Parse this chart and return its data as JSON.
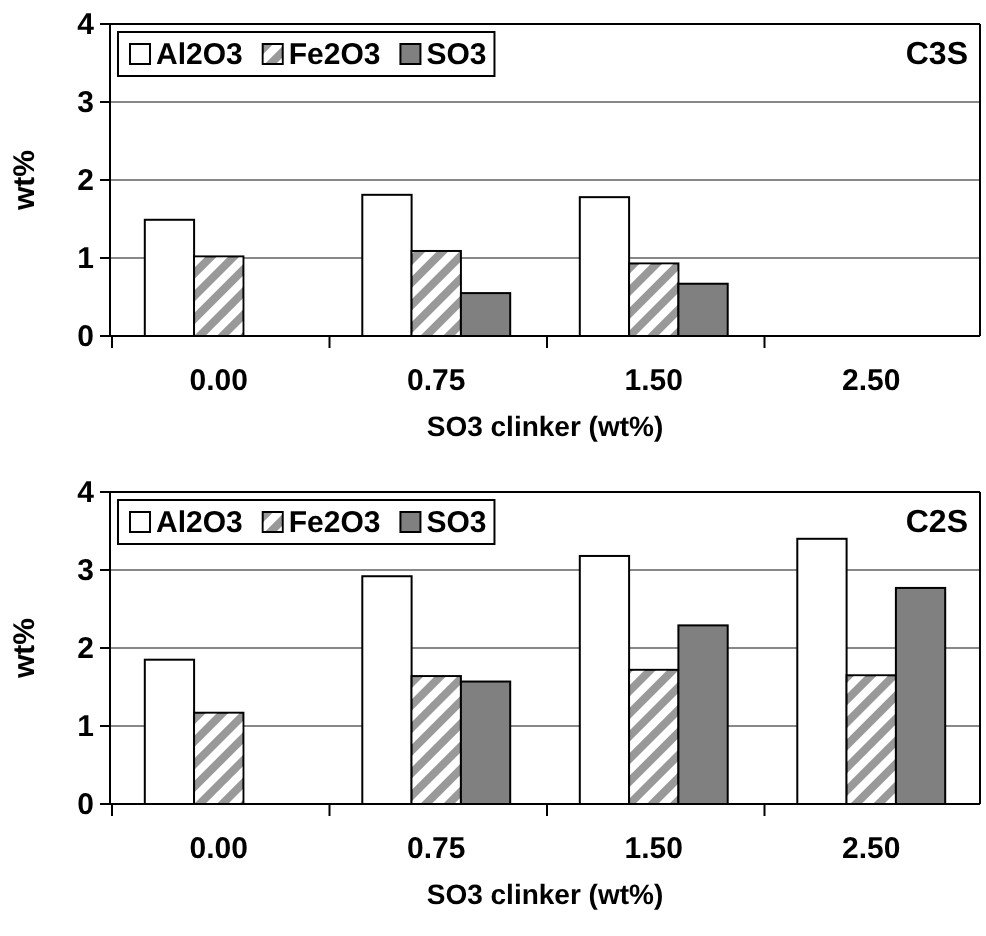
{
  "chart_data": [
    {
      "type": "bar",
      "categories": [
        "0.00",
        "0.75",
        "1.50",
        "2.50"
      ],
      "xlabel": "SO3 clinker (wt%)",
      "ylabel": "wt%",
      "annotations": [
        "C3S"
      ],
      "ylim": [
        0,
        4
      ],
      "yticks": [
        0,
        1,
        2,
        3,
        4
      ],
      "grid": "y",
      "legend": "top left",
      "series": [
        {
          "name": "Al2O3",
          "color": "#ffffff",
          "values": [
            1.49,
            1.81,
            1.78,
            null
          ]
        },
        {
          "name": "Fe2O3",
          "color": "#999999",
          "values": [
            1.02,
            1.09,
            0.93,
            null
          ]
        },
        {
          "name": "SO3",
          "color": "#808080",
          "values": [
            null,
            0.55,
            0.67,
            null
          ]
        }
      ]
    },
    {
      "type": "bar",
      "categories": [
        "0.00",
        "0.75",
        "1.50",
        "2.50"
      ],
      "xlabel": "SO3 clinker (wt%)",
      "ylabel": "wt%",
      "annotations": [
        "C2S"
      ],
      "ylim": [
        0,
        4
      ],
      "yticks": [
        0,
        1,
        2,
        3,
        4
      ],
      "grid": "y",
      "legend": "top left",
      "series": [
        {
          "name": "Al2O3",
          "color": "#ffffff",
          "values": [
            1.85,
            2.92,
            3.18,
            3.4
          ]
        },
        {
          "name": "Fe2O3",
          "color": "#999999",
          "values": [
            1.17,
            1.64,
            1.72,
            1.65
          ]
        },
        {
          "name": "SO3",
          "color": "#808080",
          "values": [
            null,
            1.57,
            2.29,
            2.77
          ]
        }
      ]
    }
  ]
}
